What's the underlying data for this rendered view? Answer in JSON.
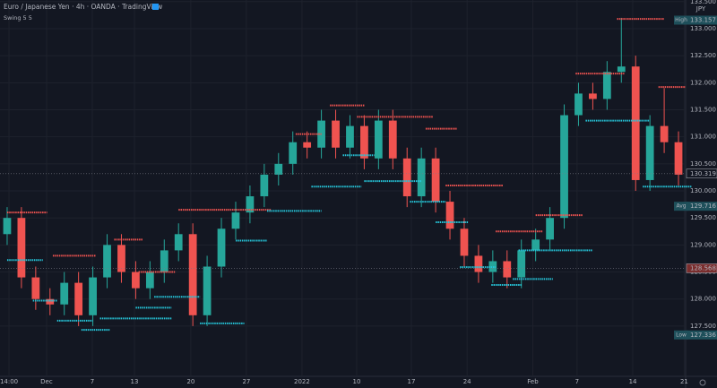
{
  "chart_data": {
    "type": "candlestick",
    "title": "Euro / Japanese Yen · 4h · OANDA · TradingView",
    "indicator": "Swing 5 5",
    "currency": "JPY",
    "up_color": "#26a69a",
    "down_color": "#ef5350",
    "swing_high_color": "#ef5350",
    "swing_low_color": "#26c6da",
    "grid": true,
    "xlim": [
      -0.5,
      47.5
    ],
    "ylim": [
      126.57,
      133.53
    ],
    "yticks": [
      {
        "value": 127.5,
        "label": "127.500"
      },
      {
        "value": 128,
        "label": "128.000"
      },
      {
        "value": 128.5,
        "label": "128.500"
      },
      {
        "value": 129,
        "label": "129.000"
      },
      {
        "value": 129.5,
        "label": "129.500"
      },
      {
        "value": 130,
        "label": "130.000"
      },
      {
        "value": 130.5,
        "label": "130.500"
      },
      {
        "value": 131,
        "label": "131.000"
      },
      {
        "value": 131.5,
        "label": "131.500"
      },
      {
        "value": 132,
        "label": "132.000"
      },
      {
        "value": 132.5,
        "label": "132.500"
      },
      {
        "value": 133,
        "label": "133.000"
      },
      {
        "value": 133.5,
        "label": "133.500"
      }
    ],
    "xticks": [
      {
        "value": 0.13,
        "label": "14:00"
      },
      {
        "value": 2.76,
        "label": "Dec"
      },
      {
        "value": 5.96,
        "label": "7"
      },
      {
        "value": 8.91,
        "label": "13"
      },
      {
        "value": 12.86,
        "label": "20"
      },
      {
        "value": 16.75,
        "label": "27"
      },
      {
        "value": 20.64,
        "label": "2022"
      },
      {
        "value": 24.47,
        "label": "10"
      },
      {
        "value": 28.3,
        "label": "17"
      },
      {
        "value": 32.2,
        "label": "24"
      },
      {
        "value": 36.8,
        "label": "Feb"
      },
      {
        "value": 39.9,
        "label": "7"
      },
      {
        "value": 43.8,
        "label": "14"
      },
      {
        "value": 47.4,
        "label": "21"
      }
    ],
    "open": [
      129.2,
      129.5,
      128.4,
      128.0,
      127.9,
      128.3,
      127.7,
      128.4,
      129.0,
      128.5,
      128.2,
      128.5,
      128.9,
      129.2,
      127.7,
      128.6,
      129.3,
      129.6,
      129.9,
      130.3,
      130.5,
      130.9,
      130.8,
      131.3,
      130.8,
      131.2,
      130.6,
      131.3,
      130.6,
      129.9,
      130.6,
      129.8,
      129.3,
      128.8,
      128.5,
      128.7,
      128.4,
      128.9,
      129.1,
      129.5,
      131.4,
      131.8,
      131.7,
      132.2,
      132.3,
      130.2,
      131.2,
      130.9
    ],
    "high": [
      129.7,
      129.7,
      128.6,
      128.2,
      128.5,
      128.5,
      128.6,
      129.2,
      129.2,
      128.7,
      128.7,
      129.1,
      129.4,
      129.4,
      128.8,
      129.5,
      129.8,
      130.1,
      130.5,
      130.7,
      131.1,
      131.1,
      131.5,
      131.5,
      131.4,
      131.4,
      131.5,
      131.5,
      130.8,
      130.8,
      130.8,
      130.0,
      129.5,
      129.0,
      128.9,
      128.9,
      129.1,
      129.3,
      129.7,
      131.6,
      132.0,
      132.0,
      132.4,
      133.2,
      132.5,
      131.4,
      131.9,
      131.1
    ],
    "low": [
      129.0,
      128.2,
      127.8,
      127.7,
      127.7,
      127.5,
      127.5,
      128.2,
      128.3,
      128.0,
      128.0,
      128.3,
      128.7,
      127.5,
      127.5,
      128.4,
      129.1,
      129.4,
      129.7,
      130.1,
      130.3,
      130.6,
      130.6,
      130.6,
      130.6,
      130.4,
      130.4,
      130.4,
      129.7,
      129.7,
      129.6,
      129.1,
      128.6,
      128.3,
      128.3,
      128.2,
      128.2,
      128.7,
      128.9,
      129.3,
      131.2,
      131.5,
      131.5,
      132.0,
      130.0,
      130.0,
      130.7,
      130.1
    ],
    "close": [
      129.5,
      128.4,
      128.0,
      127.9,
      128.3,
      127.7,
      128.4,
      129.0,
      128.5,
      128.2,
      128.5,
      128.9,
      129.2,
      127.7,
      128.6,
      129.3,
      129.6,
      129.9,
      130.3,
      130.5,
      130.9,
      130.8,
      131.3,
      130.8,
      131.2,
      130.6,
      131.3,
      130.6,
      129.9,
      130.6,
      129.8,
      129.3,
      128.8,
      128.5,
      128.7,
      128.4,
      128.9,
      129.1,
      129.5,
      131.4,
      131.8,
      131.7,
      132.2,
      132.3,
      130.2,
      131.2,
      130.9,
      130.3
    ],
    "swing_highs": [
      {
        "start": 0,
        "end": 2.8,
        "value": 129.6
      },
      {
        "start": 3.2,
        "end": 6.2,
        "value": 128.8
      },
      {
        "start": 7.5,
        "end": 9.5,
        "value": 129.1
      },
      {
        "start": 9.2,
        "end": 11.8,
        "value": 128.5
      },
      {
        "start": 12,
        "end": 18.5,
        "value": 129.65
      },
      {
        "start": 20.2,
        "end": 22,
        "value": 131.05
      },
      {
        "start": 22.6,
        "end": 25,
        "value": 131.58
      },
      {
        "start": 24.5,
        "end": 29.8,
        "value": 131.37
      },
      {
        "start": 29.3,
        "end": 31.5,
        "value": 131.15
      },
      {
        "start": 30.7,
        "end": 34.7,
        "value": 130.1
      },
      {
        "start": 34.2,
        "end": 37.5,
        "value": 129.25
      },
      {
        "start": 37,
        "end": 40.3,
        "value": 129.55
      },
      {
        "start": 39.8,
        "end": 43.2,
        "value": 132.17
      },
      {
        "start": 42.7,
        "end": 46,
        "value": 133.18
      },
      {
        "start": 45.6,
        "end": 47.5,
        "value": 131.92
      }
    ],
    "swing_lows": [
      {
        "start": 0,
        "end": 2.5,
        "value": 128.72
      },
      {
        "start": 1.8,
        "end": 3.5,
        "value": 127.97
      },
      {
        "start": 3.5,
        "end": 6,
        "value": 127.6
      },
      {
        "start": 5.2,
        "end": 7.2,
        "value": 127.43
      },
      {
        "start": 6.5,
        "end": 11.5,
        "value": 127.64
      },
      {
        "start": 9,
        "end": 11.5,
        "value": 127.84
      },
      {
        "start": 10.3,
        "end": 13.5,
        "value": 128.04
      },
      {
        "start": 13.5,
        "end": 16.6,
        "value": 127.55
      },
      {
        "start": 16,
        "end": 18.2,
        "value": 129.08
      },
      {
        "start": 18.2,
        "end": 22,
        "value": 129.63
      },
      {
        "start": 21.3,
        "end": 24.8,
        "value": 130.08
      },
      {
        "start": 23.5,
        "end": 25.7,
        "value": 130.66
      },
      {
        "start": 25,
        "end": 29,
        "value": 130.18
      },
      {
        "start": 28.2,
        "end": 30.7,
        "value": 129.8
      },
      {
        "start": 30,
        "end": 32.3,
        "value": 129.42
      },
      {
        "start": 31.7,
        "end": 34.2,
        "value": 128.59
      },
      {
        "start": 33.9,
        "end": 36,
        "value": 128.26
      },
      {
        "start": 35.4,
        "end": 38.2,
        "value": 128.37
      },
      {
        "start": 35.8,
        "end": 41,
        "value": 128.9
      },
      {
        "start": 40.5,
        "end": 45,
        "value": 131.3
      },
      {
        "start": 44.5,
        "end": 47.9,
        "value": 130.08
      }
    ],
    "price_labels": [
      {
        "tag": "High",
        "value": 133.157,
        "color": "#1e4f5a"
      },
      {
        "value": 130.319,
        "color": "#131722",
        "line": true
      },
      {
        "tag": "Avg",
        "value": 129.716,
        "color": "#1e4f5a"
      },
      {
        "value": 128.568,
        "color": "#7a2d2d",
        "line": true
      },
      {
        "tag": "Low",
        "value": 127.336,
        "color": "#1e4f5a"
      }
    ]
  }
}
